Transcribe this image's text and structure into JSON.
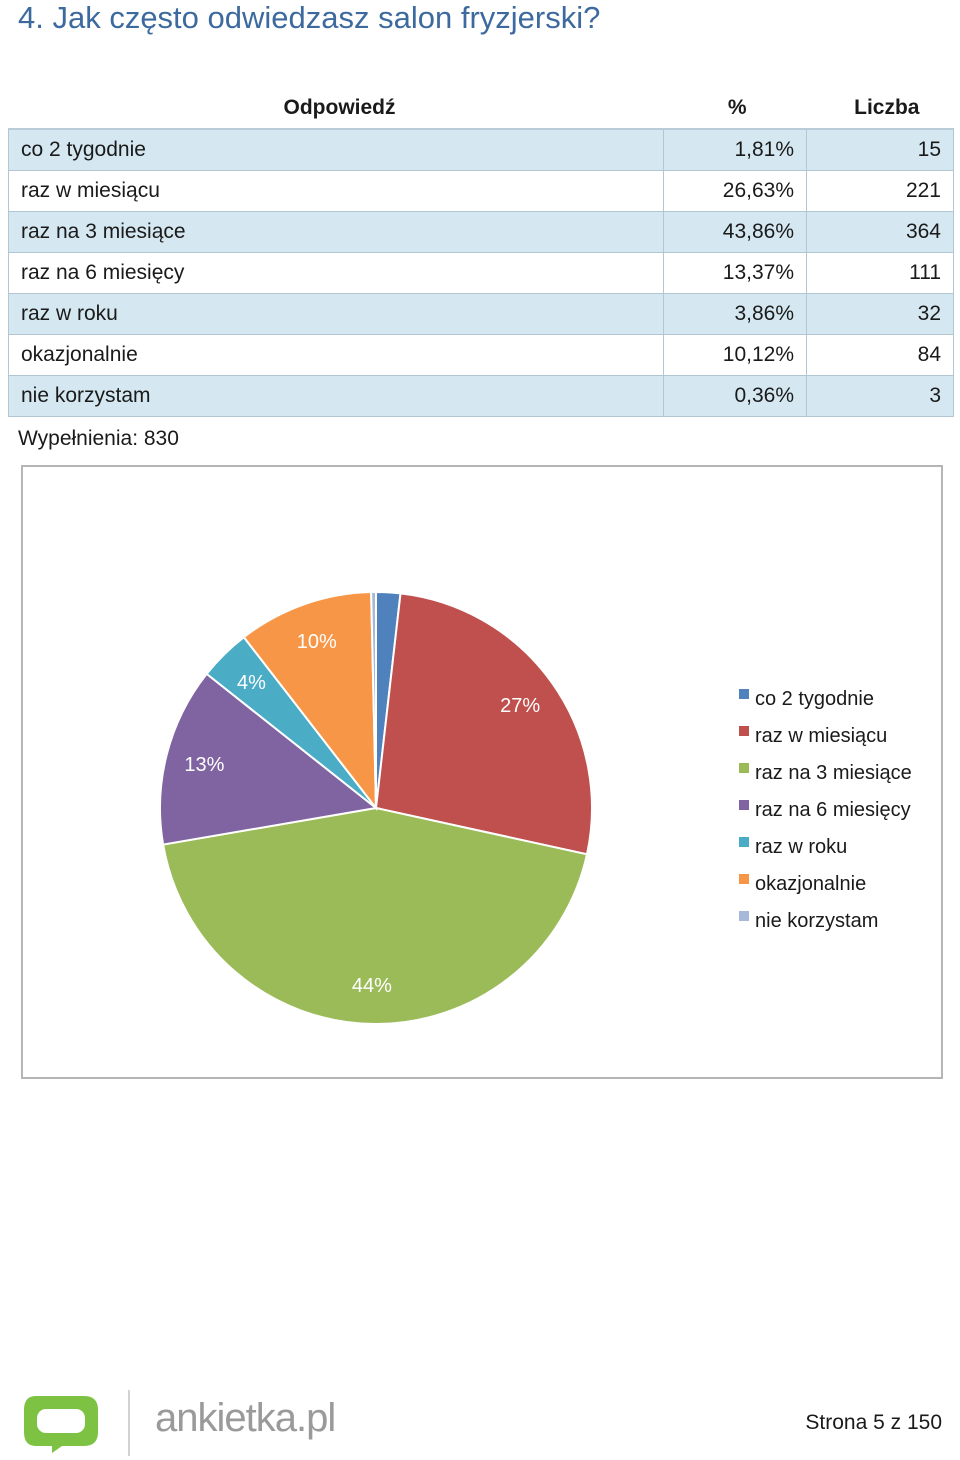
{
  "question": {
    "title": "4. Jak często odwiedzasz salon fryzjerski?"
  },
  "table": {
    "headers": {
      "answer": "Odpowiedź",
      "percent": "%",
      "count": "Liczba"
    },
    "rows": [
      {
        "answer": "co 2 tygodnie",
        "percent": "1,81%",
        "count": "15"
      },
      {
        "answer": "raz w miesiącu",
        "percent": "26,63%",
        "count": "221"
      },
      {
        "answer": "raz na 3 miesiące",
        "percent": "43,86%",
        "count": "364"
      },
      {
        "answer": "raz na 6 miesięcy",
        "percent": "13,37%",
        "count": "111"
      },
      {
        "answer": "raz w roku",
        "percent": "3,86%",
        "count": "32"
      },
      {
        "answer": "okazjonalnie",
        "percent": "10,12%",
        "count": "84"
      },
      {
        "answer": "nie korzystam",
        "percent": "0,36%",
        "count": "3"
      }
    ],
    "footnote": "Wypełnienia: 830"
  },
  "chart_data": {
    "type": "pie",
    "categories": [
      "co 2 tygodnie",
      "raz w miesiącu",
      "raz na 3 miesiące",
      "raz na 6 miesięcy",
      "raz w roku",
      "okazjonalnie",
      "nie korzystam"
    ],
    "values": [
      1.81,
      26.63,
      43.86,
      13.37,
      3.86,
      10.12,
      0.36
    ],
    "data_labels": [
      "",
      "27%",
      "44%",
      "13%",
      "4%",
      "10%",
      ""
    ],
    "colors": [
      "#4f81bd",
      "#c0504d",
      "#9bbb59",
      "#8064a2",
      "#4bacc6",
      "#f79646",
      "#a6b9d8"
    ],
    "legend_position": "right"
  },
  "footer": {
    "brand": "ankietka.pl",
    "page": "Strona 5 z 150"
  }
}
